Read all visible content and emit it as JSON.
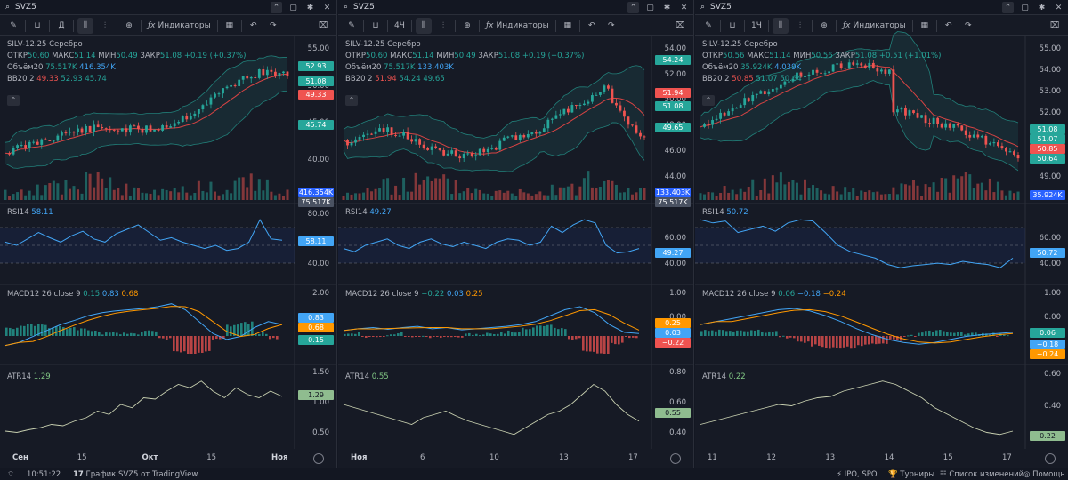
{
  "panels": [
    {
      "symbol": "SVZ5",
      "interval": "Д",
      "indicators_label": "Индикаторы",
      "legend": {
        "title": "SILV-12.25 Серебро",
        "open_label": "ОТКР",
        "open": "50.60",
        "high_label": "МАКС",
        "high": "51.14",
        "low_label": "МИН",
        "low": "50.49",
        "close_label": "ЗАКР",
        "close": "51.08",
        "change": "+0.19 (+0.37%)",
        "vol_label": "Объём20",
        "vol_a": "75.517K",
        "vol_b": "416.354K",
        "bb_label": "BB20 2",
        "bb_a": "49.33",
        "bb_b": "52.93",
        "bb_c": "45.74"
      },
      "price_ticks": [
        "55.00",
        "50.00",
        "45.00",
        "40.00",
        "35.00"
      ],
      "price_tags": {
        "upper": "52.93",
        "last": "51.08",
        "ma": "49.33",
        "lower": "45.74",
        "vol_a": "416.354K",
        "vol_b": "75.517K"
      },
      "rsi": {
        "label": "RSI14",
        "value": "58.11",
        "ticks": [
          "80.00",
          "40.00"
        ],
        "tag": "58.11"
      },
      "macd": {
        "label": "MACD12 26 close 9",
        "hist": "0.15",
        "macd": "0.83",
        "signal": "0.68",
        "ticks": [
          "2.00",
          "1.00"
        ],
        "tags": [
          "0.83",
          "0.68",
          "0.15"
        ]
      },
      "atr": {
        "label": "ATR14",
        "value": "1.29",
        "ticks": [
          "1.50",
          "1.00",
          "0.50"
        ],
        "tag": "1.29"
      },
      "x_labels": [
        "Сен",
        "15",
        "Окт",
        "15",
        "Ноя"
      ]
    },
    {
      "symbol": "SVZ5",
      "interval": "4Ч",
      "indicators_label": "Индикаторы",
      "legend": {
        "title": "SILV-12.25 Серебро",
        "open_label": "ОТКР",
        "open": "50.60",
        "high_label": "МАКС",
        "high": "51.14",
        "low_label": "МИН",
        "low": "50.49",
        "close_label": "ЗАКР",
        "close": "51.08",
        "change": "+0.19 (+0.37%)",
        "vol_label": "Объём20",
        "vol_a": "75.517K",
        "vol_b": "133.403K",
        "bb_label": "BB20 2",
        "bb_a": "51.94",
        "bb_b": "54.24",
        "bb_c": "49.65"
      },
      "price_ticks": [
        "54.00",
        "52.00",
        "50.00",
        "48.00",
        "46.00",
        "44.00"
      ],
      "price_tags": {
        "upper": "54.24",
        "ma": "51.94",
        "last": "51.08",
        "lower": "49.65",
        "vol_a": "133.403K",
        "vol_b": "75.517K"
      },
      "rsi": {
        "label": "RSI14",
        "value": "49.27",
        "ticks": [
          "60.00",
          "40.00"
        ],
        "tag": "49.27"
      },
      "macd": {
        "label": "MACD12 26 close 9",
        "hist": "−0.22",
        "macd": "0.03",
        "signal": "0.25",
        "ticks": [
          "1.00",
          "0.00"
        ],
        "tags": [
          "0.25",
          "0.03",
          "−0.22"
        ]
      },
      "atr": {
        "label": "ATR14",
        "value": "0.55",
        "ticks": [
          "0.80",
          "0.60",
          "0.40"
        ],
        "tag": "0.55"
      },
      "x_labels": [
        "Ноя",
        "6",
        "10",
        "13",
        "17"
      ]
    },
    {
      "symbol": "SVZ5",
      "interval": "1Ч",
      "indicators_label": "Индикаторы",
      "legend": {
        "title": "SILV-12.25 Серебро",
        "open_label": "ОТКР",
        "open": "50.56",
        "high_label": "МАКС",
        "high": "51.14",
        "low_label": "МИН",
        "low": "50.56",
        "close_label": "ЗАКР",
        "close": "51.08",
        "change": "+0.51 (+1.01%)",
        "vol_label": "Объём20",
        "vol_a": "35.924K",
        "vol_b": "4.039K",
        "bb_label": "BB20 2",
        "bb_a": "50.85",
        "bb_b": "51.07",
        "bb_c": "50.64"
      },
      "price_ticks": [
        "55.00",
        "54.00",
        "53.00",
        "52.00",
        "51.00",
        "50.00",
        "49.00"
      ],
      "price_tags": {
        "last": "51.08",
        "upper": "51.07",
        "ma": "50.85",
        "lower": "50.64",
        "vol_a": "35.924K"
      },
      "rsi": {
        "label": "RSI14",
        "value": "50.72",
        "ticks": [
          "60.00",
          "40.00"
        ],
        "tag": "50.72"
      },
      "macd": {
        "label": "MACD12 26 close 9",
        "hist": "0.06",
        "macd": "−0.18",
        "signal": "−0.24",
        "ticks": [
          "1.00",
          "0.00"
        ],
        "tags": [
          "0.06",
          "−0.18",
          "−0.24"
        ]
      },
      "atr": {
        "label": "ATR14",
        "value": "0.22",
        "ticks": [
          "0.60",
          "0.40"
        ],
        "tag": "0.22"
      },
      "x_labels": [
        "11",
        "12",
        "13",
        "14",
        "15",
        "17"
      ]
    }
  ],
  "status": {
    "time": "10:51:22",
    "chart_by": "График SVZ5 от TradingView",
    "ipo": "IPO, SPO",
    "tournaments": "Турниры",
    "changelog": "Список изменений",
    "help": "Помощь"
  },
  "colors": {
    "up": "#26a69a",
    "down": "#ef5350",
    "macd": "#42a5f5",
    "signal": "#ff9800",
    "rsi": "#42a5f5",
    "atr": "#c8d0b0",
    "ma": "#d84343",
    "band": "#26a69a"
  }
}
